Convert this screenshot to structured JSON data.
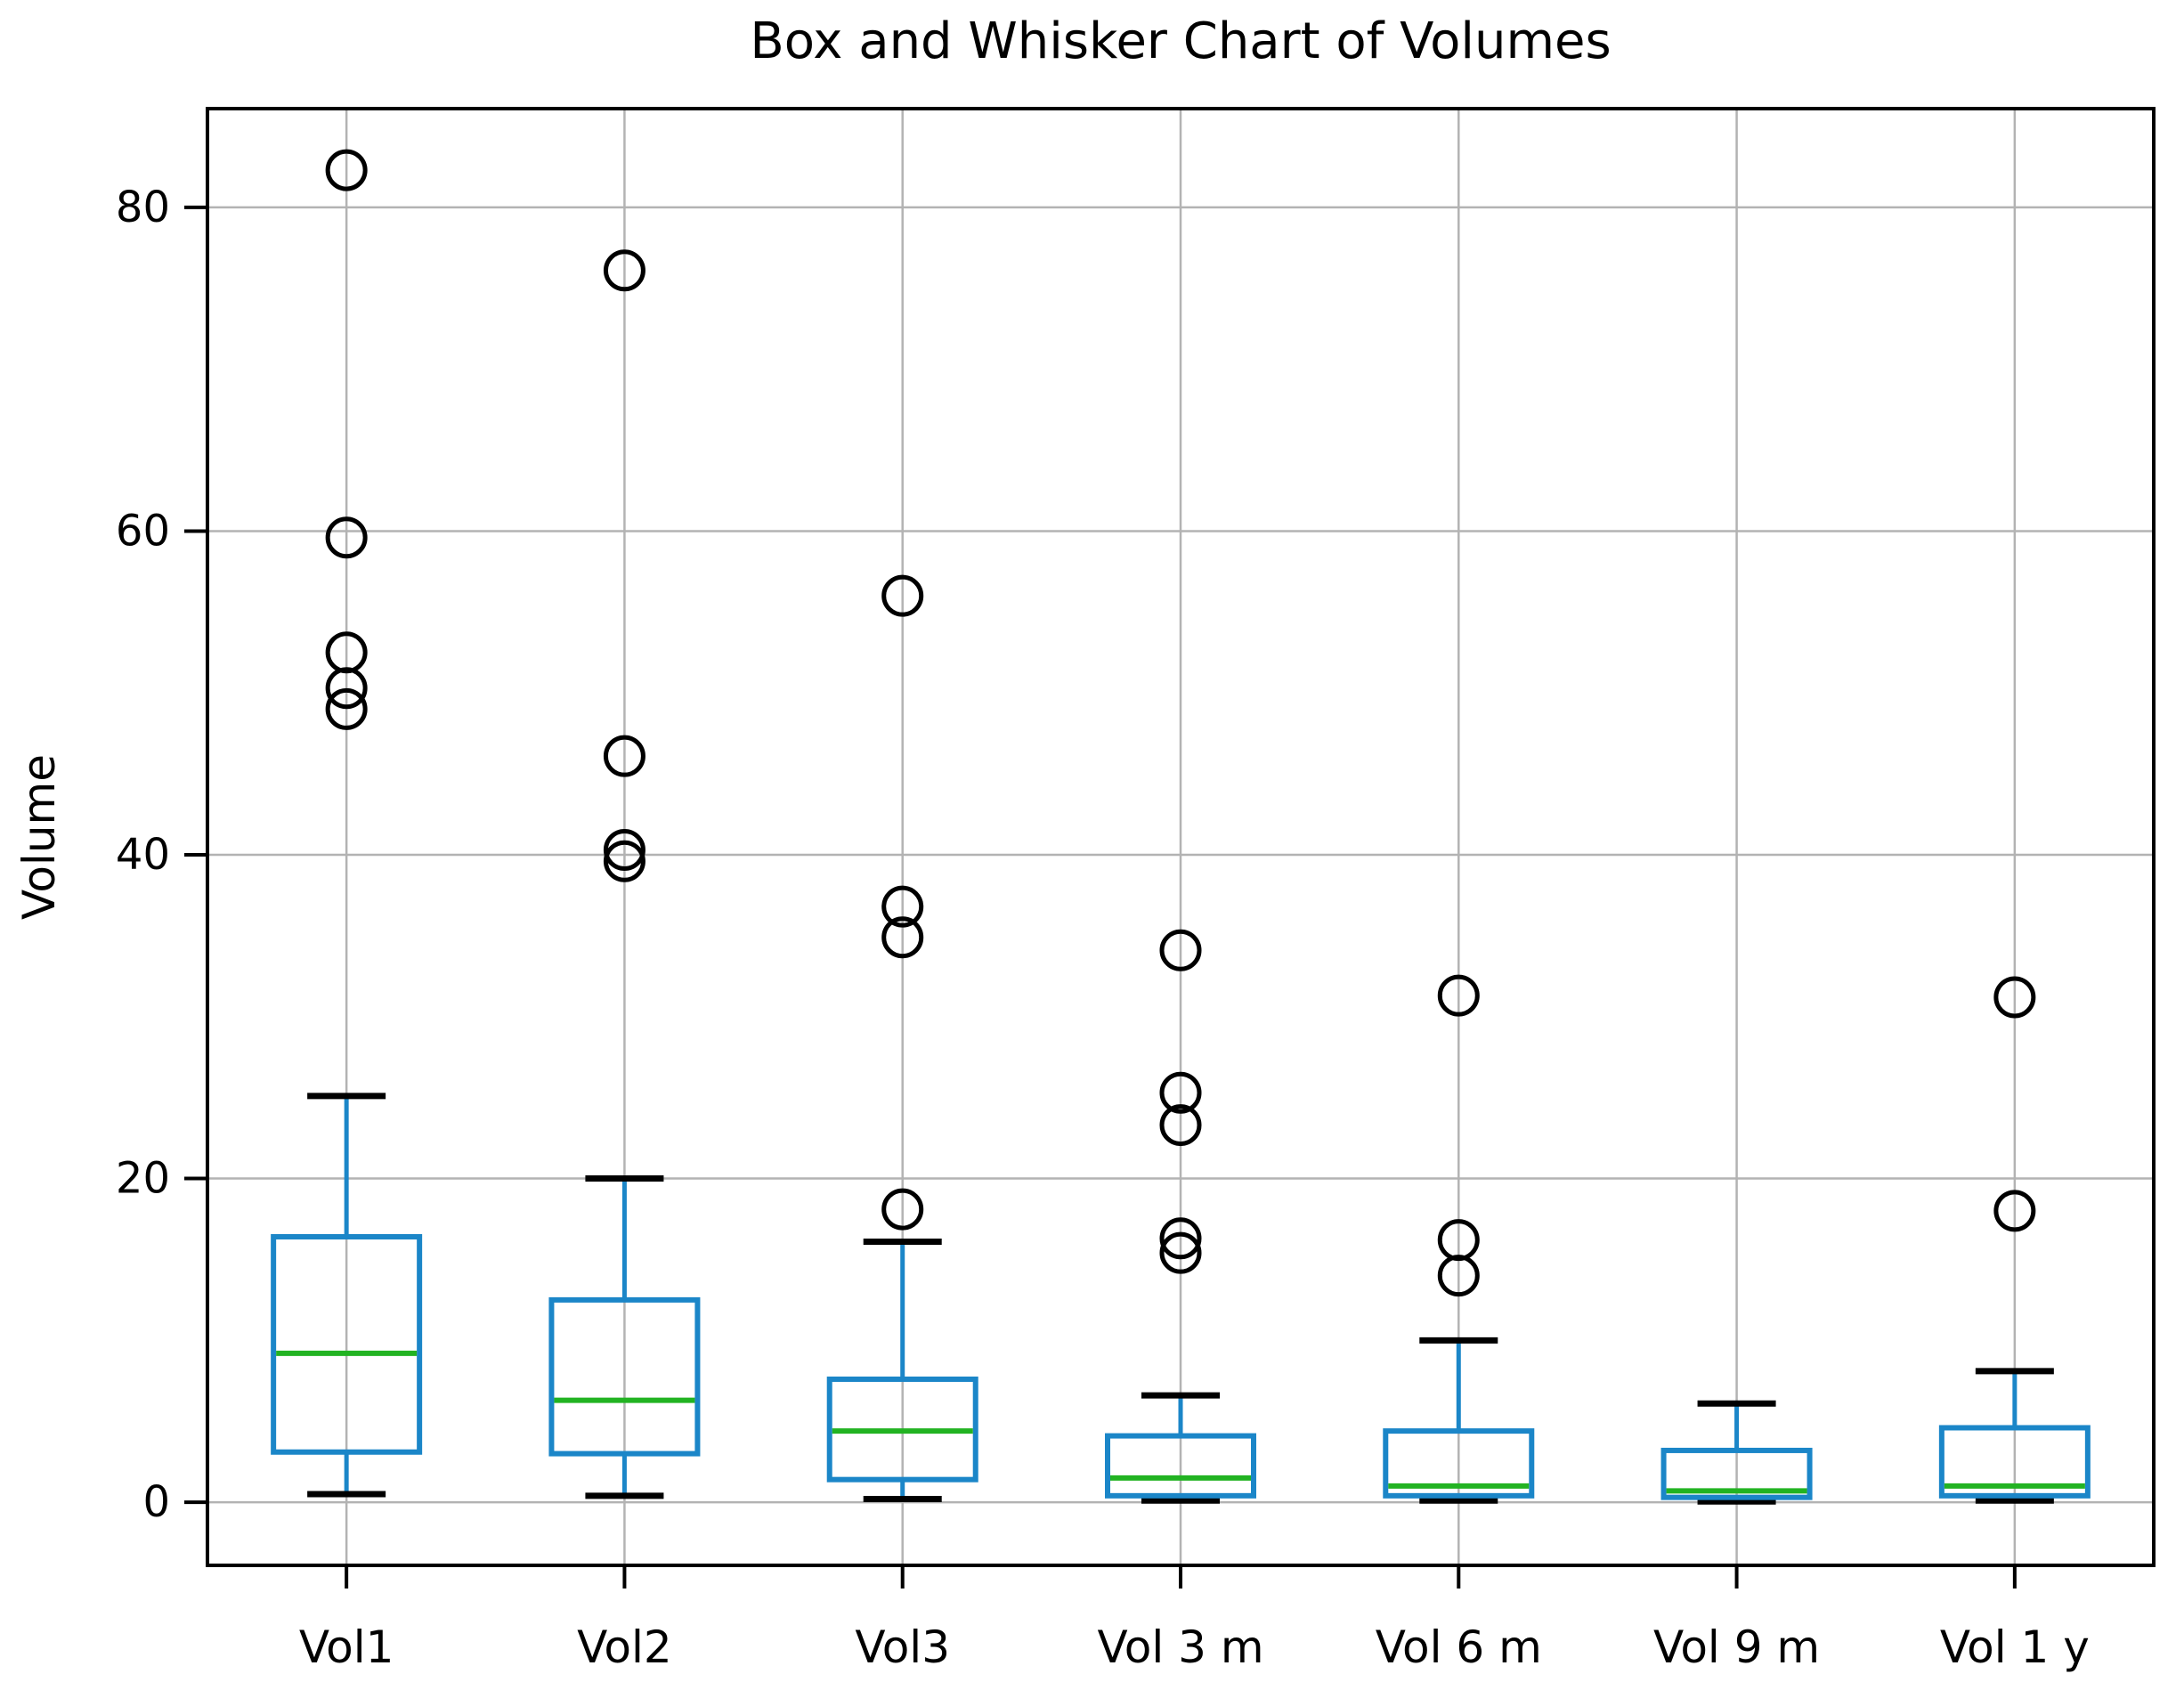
{
  "title": "Box and Whisker Chart of Volumes",
  "ylabel": "Volume",
  "chart_data": {
    "type": "boxplot",
    "title": "Box and Whisker Chart of Volumes",
    "ylabel": "Volume",
    "xlabel": "",
    "grid": true,
    "legend": false,
    "categories": [
      "Vol1",
      "Vol2",
      "Vol3",
      "Vol 3 m",
      "Vol 6 m",
      "Vol 9 m",
      "Vol 1 y"
    ],
    "yticks": [
      0,
      20,
      40,
      60,
      80
    ],
    "ylim": [
      -3.9,
      86.1
    ],
    "series": [
      {
        "name": "Vol1",
        "whislo": 0.5,
        "q1": 3.1,
        "med": 9.2,
        "q3": 16.4,
        "whishi": 25.1,
        "fliers": [
          49.0,
          50.3,
          52.5,
          59.6,
          82.3
        ]
      },
      {
        "name": "Vol2",
        "whislo": 0.4,
        "q1": 3.0,
        "med": 6.3,
        "q3": 12.5,
        "whishi": 20.0,
        "fliers": [
          39.6,
          40.3,
          46.1,
          76.1
        ]
      },
      {
        "name": "Vol3",
        "whislo": 0.2,
        "q1": 1.4,
        "med": 4.4,
        "q3": 7.6,
        "whishi": 16.1,
        "fliers": [
          18.1,
          34.9,
          36.8,
          56.0
        ]
      },
      {
        "name": "Vol 3 m",
        "whislo": 0.1,
        "q1": 0.4,
        "med": 1.5,
        "q3": 4.1,
        "whishi": 6.6,
        "fliers": [
          15.4,
          16.3,
          23.3,
          25.3,
          34.1
        ]
      },
      {
        "name": "Vol 6 m",
        "whislo": 0.1,
        "q1": 0.4,
        "med": 1.0,
        "q3": 4.4,
        "whishi": 10.0,
        "fliers": [
          14.0,
          16.2,
          31.3
        ]
      },
      {
        "name": "Vol 9 m",
        "whislo": 0.05,
        "q1": 0.3,
        "med": 0.7,
        "q3": 3.2,
        "whishi": 6.1,
        "fliers": []
      },
      {
        "name": "Vol 1 y",
        "whislo": 0.1,
        "q1": 0.4,
        "med": 1.0,
        "q3": 4.6,
        "whishi": 8.1,
        "fliers": [
          18.0,
          31.2
        ]
      }
    ],
    "colors": {
      "box": "#1b86c8",
      "median": "#22b322",
      "whisker": "#1b86c8",
      "caps": "#000000",
      "fliers": "#000000",
      "grid": "#b3b3b3",
      "spine": "#000000",
      "tick_text": "#000000",
      "background": "#ffffff"
    }
  }
}
